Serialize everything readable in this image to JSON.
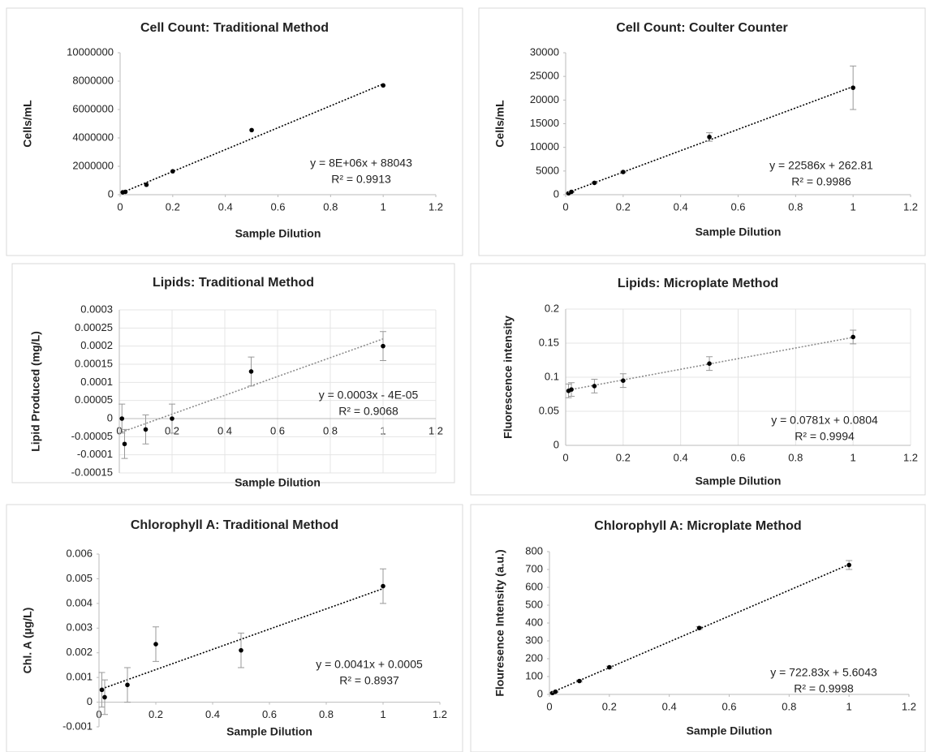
{
  "chart_data": [
    {
      "type": "scatter",
      "title": "Cell Count: Traditional Method",
      "x_label": "Sample Dilution",
      "y_label": "Cells/mL",
      "xlim": [
        0,
        1.2
      ],
      "xticks": [
        0,
        0.2,
        0.4,
        0.6,
        0.8,
        1,
        1.2
      ],
      "ylim": [
        0,
        10000000
      ],
      "yticks": [
        0,
        2000000,
        4000000,
        6000000,
        8000000,
        10000000
      ],
      "grid": false,
      "series": [
        {
          "color": "#000000",
          "x": [
            0.01,
            0.02,
            0.1,
            0.2,
            0.5,
            1
          ],
          "values": [
            170000,
            200000,
            700000,
            1650000,
            4550000,
            7700000
          ]
        }
      ],
      "trendline": {
        "color": "#000000",
        "x": [
          0.01,
          1
        ],
        "y": [
          168000,
          7800000
        ]
      },
      "annotations": [
        "y = 8E+06x + 88043",
        "R² = 0.9913"
      ]
    },
    {
      "type": "scatter",
      "title": "Cell Count: Coulter Counter",
      "x_label": "Sample Dilution",
      "y_label": "Cells/mL",
      "xlim": [
        0,
        1.2
      ],
      "xticks": [
        0,
        0.2,
        0.4,
        0.6,
        0.8,
        1,
        1.2
      ],
      "ylim": [
        0,
        30000
      ],
      "yticks": [
        0,
        5000,
        10000,
        15000,
        20000,
        25000,
        30000
      ],
      "grid": false,
      "series": [
        {
          "color": "#000000",
          "x": [
            0.01,
            0.02,
            0.1,
            0.2,
            0.5,
            1
          ],
          "values": [
            300,
            600,
            2500,
            4800,
            12200,
            22600
          ],
          "errors": [
            60,
            80,
            120,
            150,
            900,
            4600
          ]
        }
      ],
      "trendline": {
        "color": "#000000",
        "x": [
          0.01,
          1
        ],
        "y": [
          489,
          22849
        ]
      },
      "annotations": [
        "y = 22586x + 262.81",
        "R² = 0.9986"
      ]
    },
    {
      "type": "scatter",
      "title": "Lipids: Traditional Method",
      "x_label": "Sample Dilution",
      "y_label": "Lipid Produced (mg/L)",
      "xlim": [
        0,
        1.2
      ],
      "xticks": [
        0,
        0.2,
        0.4,
        0.6,
        0.8,
        1,
        1.2
      ],
      "ylim": [
        -0.00015,
        0.0003
      ],
      "yticks": [
        -0.00015,
        -0.0001,
        -5e-05,
        0,
        5e-05,
        0.0001,
        0.00015,
        0.0002,
        0.00025,
        0.0003
      ],
      "grid": true,
      "series": [
        {
          "color": "#000000",
          "x": [
            0.01,
            0.02,
            0.1,
            0.2,
            0.5,
            1
          ],
          "values": [
            0,
            -7e-05,
            -3e-05,
            0,
            0.00013,
            0.0002
          ],
          "errors": [
            4e-05,
            4e-05,
            4e-05,
            4e-05,
            4e-05,
            4e-05
          ]
        }
      ],
      "trendline": {
        "color": "#8c8c8c",
        "x": [
          0.01,
          1
        ],
        "y": [
          -3.7e-05,
          0.00022
        ]
      },
      "annotations": [
        "y = 0.0003x - 4E-05",
        "R² = 0.9068"
      ]
    },
    {
      "type": "scatter",
      "title": "Lipids: Microplate Method",
      "x_label": "Sample Dilution",
      "y_label": "Fluorescence intensity",
      "xlim": [
        0,
        1.2
      ],
      "xticks": [
        0,
        0.2,
        0.4,
        0.6,
        0.8,
        1,
        1.2
      ],
      "ylim": [
        0,
        0.2
      ],
      "yticks": [
        0,
        0.05,
        0.1,
        0.15,
        0.2
      ],
      "grid": true,
      "series": [
        {
          "color": "#000000",
          "x": [
            0.01,
            0.02,
            0.1,
            0.2,
            0.5,
            1
          ],
          "values": [
            0.08,
            0.082,
            0.087,
            0.095,
            0.12,
            0.159
          ],
          "errors": [
            0.01,
            0.01,
            0.01,
            0.01,
            0.01,
            0.01
          ]
        }
      ],
      "trendline": {
        "color": "#8c8c8c",
        "x": [
          0.01,
          1
        ],
        "y": [
          0.0812,
          0.1585
        ]
      },
      "annotations": [
        "y = 0.0781x + 0.0804",
        "R² = 0.9994"
      ]
    },
    {
      "type": "scatter",
      "title": "Chlorophyll A: Traditional Method",
      "x_label": "Sample Dilution",
      "y_label": "Chl. A (µg/L)",
      "xlim": [
        0,
        1.2
      ],
      "xticks": [
        0,
        0.2,
        0.4,
        0.6,
        0.8,
        1,
        1.2
      ],
      "ylim": [
        -0.001,
        0.006
      ],
      "yticks": [
        -0.001,
        0,
        0.001,
        0.002,
        0.003,
        0.004,
        0.005,
        0.006
      ],
      "grid": false,
      "series": [
        {
          "color": "#000000",
          "x": [
            0.01,
            0.02,
            0.1,
            0.2,
            0.5,
            1
          ],
          "values": [
            0.0005,
            0.0002,
            0.0007,
            0.00235,
            0.0021,
            0.0047
          ],
          "errors": [
            0.0007,
            0.0007,
            0.0007,
            0.0007,
            0.0007,
            0.0007
          ]
        }
      ],
      "trendline": {
        "color": "#000000",
        "x": [
          0.01,
          1
        ],
        "y": [
          0.00054,
          0.0046
        ]
      },
      "annotations": [
        "y = 0.0041x + 0.0005",
        "R² = 0.8937"
      ]
    },
    {
      "type": "scatter",
      "title": "Chlorophyll A: Microplate Method",
      "x_label": "Sample Dilution",
      "y_label": "Flouresence Intensity (a.u.)",
      "xlim": [
        0,
        1.2
      ],
      "xticks": [
        0,
        0.2,
        0.4,
        0.6,
        0.8,
        1,
        1.2
      ],
      "ylim": [
        0,
        800
      ],
      "yticks": [
        0,
        100,
        200,
        300,
        400,
        500,
        600,
        700,
        800
      ],
      "grid": false,
      "series": [
        {
          "color": "#000000",
          "x": [
            0.01,
            0.02,
            0.1,
            0.2,
            0.5,
            1
          ],
          "values": [
            8,
            15,
            75,
            152,
            372,
            725
          ],
          "errors": [
            3,
            3,
            5,
            6,
            8,
            25
          ]
        }
      ],
      "trendline": {
        "color": "#000000",
        "x": [
          0.01,
          1
        ],
        "y": [
          12.8,
          728
        ]
      },
      "annotations": [
        "y = 722.83x + 5.6043",
        "R² = 0.9998"
      ]
    }
  ]
}
